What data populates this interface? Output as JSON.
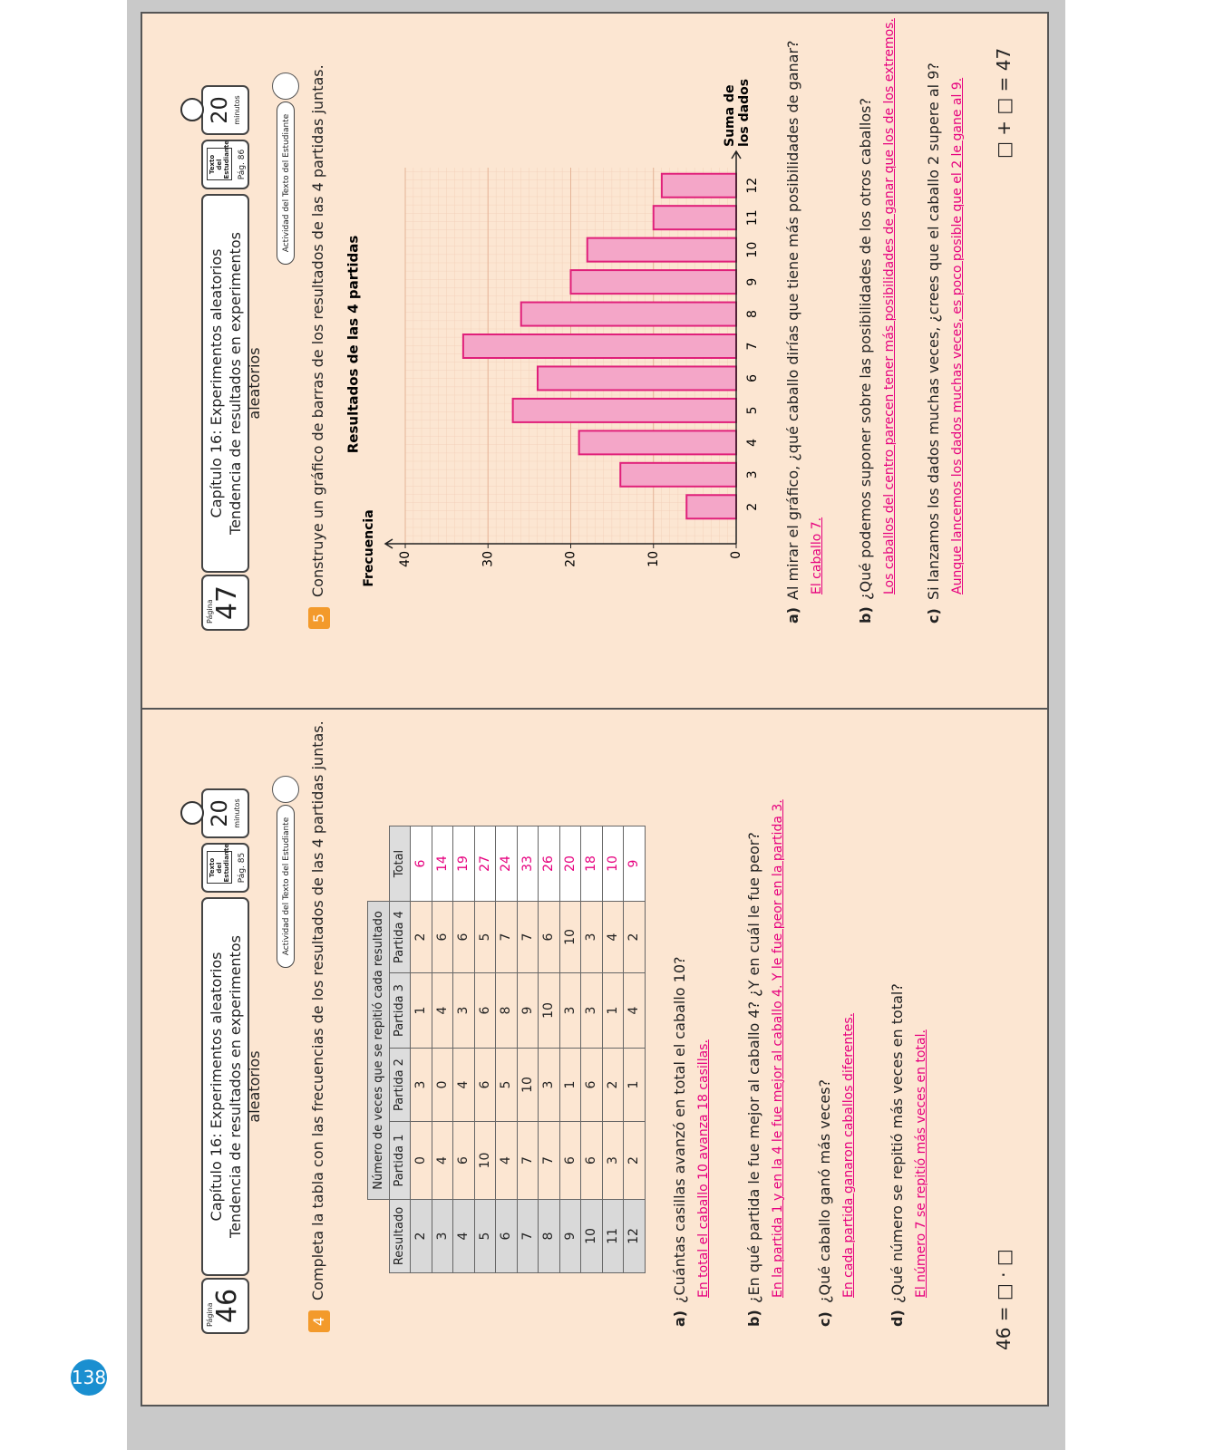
{
  "page_number": "138",
  "pages": [
    {
      "page_label": "Página",
      "page": "46",
      "chapter": "Capítulo 16: Experimentos aleatorios",
      "subtitle": "Tendencia de resultados en experimentos aleatorios",
      "book": "Texto del Estudiante",
      "book_page": "Pág. 85",
      "time": "20",
      "time_unit": "minutos",
      "activity": "Actividad del Texto del Estudiante",
      "exercise": "4",
      "instruction": "Completa la tabla con las frecuencias de los resultados de las 4 partidas juntas.",
      "table": {
        "header_group": "Número de veces que se repitió cada resultado",
        "columns": [
          "Resultado",
          "Partida 1",
          "Partida 2",
          "Partida 3",
          "Partida 4",
          "Total"
        ],
        "rows": [
          [
            2,
            0,
            3,
            1,
            2,
            6
          ],
          [
            3,
            4,
            0,
            4,
            6,
            14
          ],
          [
            4,
            6,
            4,
            3,
            6,
            19
          ],
          [
            5,
            10,
            6,
            6,
            5,
            27
          ],
          [
            6,
            4,
            5,
            8,
            7,
            24
          ],
          [
            7,
            7,
            10,
            9,
            7,
            33
          ],
          [
            8,
            7,
            3,
            10,
            6,
            26
          ],
          [
            9,
            6,
            1,
            3,
            10,
            20
          ],
          [
            10,
            6,
            6,
            3,
            3,
            18
          ],
          [
            11,
            3,
            2,
            1,
            4,
            10
          ],
          [
            12,
            2,
            1,
            4,
            2,
            9
          ]
        ]
      },
      "questions": [
        {
          "label": "a)",
          "text": "¿Cuántas casillas avanzó en total el caballo 10?",
          "answer": "En total el caballo 10 avanza 18 casillas."
        },
        {
          "label": "b)",
          "text": "¿En qué partida le fue mejor al caballo 4? ¿Y en cuál le fue peor?",
          "answer": "En la partida 1 y en la 4 le fue mejor al caballo 4. Y le fue peor en la partida 3."
        },
        {
          "label": "c)",
          "text": "¿Qué caballo ganó más veces?",
          "answer": "En cada partida ganaron caballos diferentes."
        },
        {
          "label": "d)",
          "text": "¿Qué número se repitió más veces en total?",
          "answer": "El número 7 se repitió más veces en total."
        }
      ],
      "footer": "46 = □ · □"
    },
    {
      "page_label": "Página",
      "page": "47",
      "chapter": "Capítulo 16: Experimentos aleatorios",
      "subtitle": "Tendencia de resultados en experimentos aleatorios",
      "book": "Texto del Estudiante",
      "book_page": "Pág. 86",
      "time": "20",
      "time_unit": "minutos",
      "activity": "Actividad del Texto del Estudiante",
      "exercise": "5",
      "instruction": "Construye un gráfico de barras de los resultados de las 4 partidas juntas.",
      "questions": [
        {
          "label": "a)",
          "text": "Al mirar el gráfico, ¿qué caballo dirías que tiene más posibilidades de ganar?",
          "answer": "El caballo 7."
        },
        {
          "label": "b)",
          "text": "¿Qué podemos suponer sobre las posibilidades de los otros caballos?",
          "answer": "Los caballos del centro parecen tener más posibilidades de ganar que los de los extremos."
        },
        {
          "label": "c)",
          "text": "Si lanzamos los dados muchas veces, ¿crees que el caballo 2 supere al 9?",
          "answer": "Aunque lancemos los dados muchas veces, es poco posible que el 2 le gane al 9."
        }
      ],
      "footer": "□ + □ = 47"
    }
  ],
  "chart_data": {
    "type": "bar",
    "title": "Resultados de las 4 partidas",
    "y_label": "Frecuencia",
    "x_label": [
      "Suma de",
      "los dados"
    ],
    "categories": [
      "2",
      "3",
      "4",
      "5",
      "6",
      "7",
      "8",
      "9",
      "10",
      "11",
      "12"
    ],
    "values": [
      6,
      14,
      19,
      27,
      24,
      33,
      26,
      20,
      18,
      10,
      9
    ],
    "color": "#f4a6c8",
    "edge_color": "#e0207a",
    "ylim": [
      0,
      40
    ],
    "yticks": [
      0,
      10,
      20,
      30,
      40
    ],
    "grid": true
  }
}
